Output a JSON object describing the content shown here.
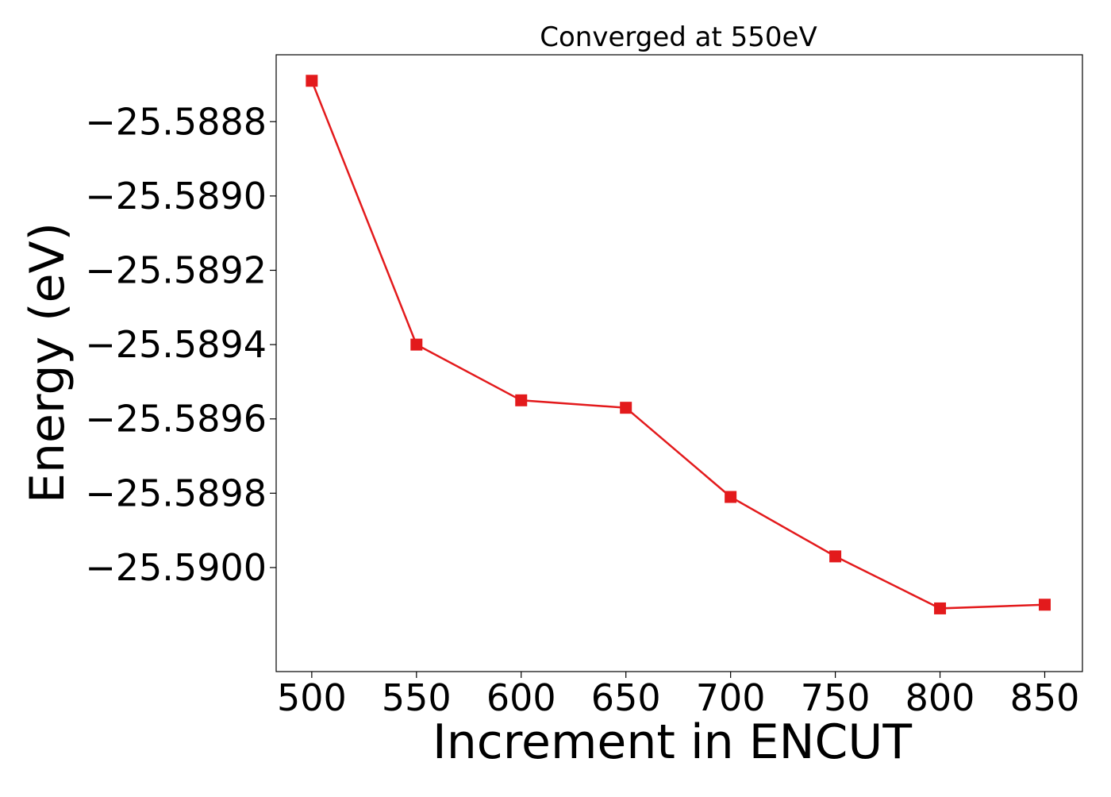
{
  "chart_data": {
    "type": "line",
    "title": "Converged at 550eV",
    "xlabel": "Increment in ENCUT",
    "ylabel": "Energy (eV)",
    "x": [
      500,
      550,
      600,
      650,
      700,
      750,
      800,
      850
    ],
    "series": [
      {
        "values": [
          -25.58869,
          -25.5894,
          -25.58955,
          -25.58957,
          -25.58981,
          -25.58997,
          -25.59011,
          -25.5901
        ],
        "color": "#e31a1c",
        "marker": "square"
      }
    ],
    "xticks": [
      500,
      550,
      600,
      650,
      700,
      750,
      800,
      850
    ],
    "xtick_labels": [
      "500",
      "550",
      "600",
      "650",
      "700",
      "750",
      "800",
      "850"
    ],
    "yticks": [
      -25.5888,
      -25.589,
      -25.5892,
      -25.5894,
      -25.5896,
      -25.5898,
      -25.59
    ],
    "ytick_labels": [
      "−25.5888",
      "−25.5890",
      "−25.5892",
      "−25.5894",
      "−25.5896",
      "−25.5898",
      "−25.5900"
    ],
    "xlim": [
      483,
      868
    ],
    "ylim": [
      -25.59028,
      -25.58862
    ],
    "grid": false,
    "legend": "none"
  }
}
